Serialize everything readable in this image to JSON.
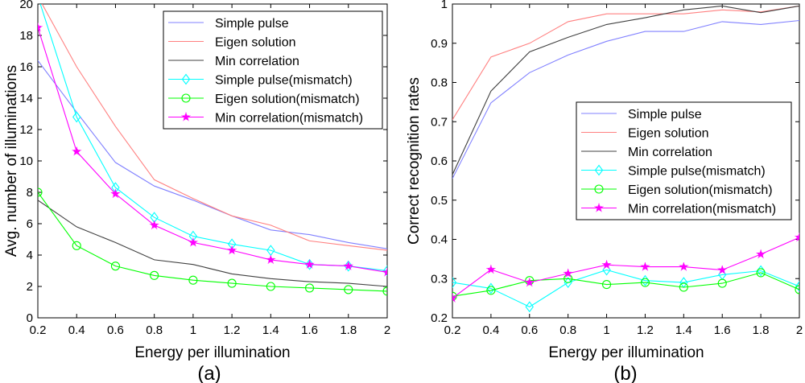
{
  "colors": {
    "simple_pulse": "#8080ff",
    "eigen_solution": "#ff8080",
    "min_correlation": "#404040",
    "simple_pulse_mismatch": "#00ffff",
    "eigen_solution_mismatch": "#00ff00",
    "min_correlation_mismatch": "#ff00ff"
  },
  "chart_data": [
    {
      "type": "line",
      "caption": "(a)",
      "xlabel": "Energy per illumination",
      "ylabel": "Avg. number of illuminations",
      "xlim": [
        0.2,
        2
      ],
      "ylim": [
        0,
        20
      ],
      "xticks": [
        0.2,
        0.4,
        0.6,
        0.8,
        1,
        1.2,
        1.4,
        1.6,
        1.8,
        2
      ],
      "xtick_labels": [
        "0.2",
        "0.4",
        "0.6",
        "0.8",
        "1",
        "1.2",
        "1.4",
        "1.6",
        "1.8",
        "2"
      ],
      "yticks": [
        0,
        2,
        4,
        6,
        8,
        10,
        12,
        14,
        16,
        18,
        20
      ],
      "ytick_labels": [
        "0",
        "2",
        "4",
        "6",
        "8",
        "10",
        "12",
        "14",
        "16",
        "18",
        "20"
      ],
      "grid": false,
      "legend_position": "top-right",
      "x": [
        0.2,
        0.4,
        0.6,
        0.8,
        1,
        1.2,
        1.4,
        1.6,
        1.8,
        2
      ],
      "series": [
        {
          "name": "Simple pulse",
          "color": "simple_pulse",
          "marker": "none",
          "values": [
            16.4,
            13.1,
            9.9,
            8.4,
            7.5,
            6.5,
            5.6,
            5.3,
            4.8,
            4.4
          ]
        },
        {
          "name": "Eigen solution",
          "color": "eigen_solution",
          "marker": "none",
          "values": [
            20.5,
            16.0,
            12.2,
            8.8,
            7.6,
            6.5,
            5.9,
            4.9,
            4.6,
            4.3
          ]
        },
        {
          "name": "Min correlation",
          "color": "min_correlation",
          "marker": "none",
          "values": [
            7.5,
            5.8,
            4.8,
            3.7,
            3.4,
            2.8,
            2.5,
            2.3,
            2.2,
            2.0
          ]
        },
        {
          "name": "Simple pulse(mismatch)",
          "color": "simple_pulse_mismatch",
          "marker": "diamond",
          "values": [
            20.5,
            12.8,
            8.3,
            6.4,
            5.2,
            4.7,
            4.3,
            3.4,
            3.3,
            3.0
          ]
        },
        {
          "name": "Eigen solution(mismatch)",
          "color": "eigen_solution_mismatch",
          "marker": "circle",
          "values": [
            8.0,
            4.6,
            3.3,
            2.7,
            2.4,
            2.2,
            2.0,
            1.9,
            1.8,
            1.7
          ]
        },
        {
          "name": "Min correlation(mismatch)",
          "color": "min_correlation_mismatch",
          "marker": "star",
          "values": [
            18.5,
            10.6,
            7.9,
            5.9,
            4.8,
            4.3,
            3.7,
            3.4,
            3.3,
            2.9
          ]
        }
      ]
    },
    {
      "type": "line",
      "caption": "(b)",
      "xlabel": "Energy per illumination",
      "ylabel": "Correct recognition rates",
      "xlim": [
        0.2,
        2
      ],
      "ylim": [
        0.2,
        1
      ],
      "xticks": [
        0.2,
        0.4,
        0.6,
        0.8,
        1,
        1.2,
        1.4,
        1.6,
        1.8,
        2
      ],
      "xtick_labels": [
        "0.2",
        "0.4",
        "0.6",
        "0.8",
        "1",
        "1.2",
        "1.4",
        "1.6",
        "1.8",
        "2"
      ],
      "yticks": [
        0.2,
        0.3,
        0.4,
        0.5,
        0.6,
        0.7,
        0.8,
        0.9,
        1
      ],
      "ytick_labels": [
        "0.2",
        "0.3",
        "0.4",
        "0.5",
        "0.6",
        "0.7",
        "0.8",
        "0.9",
        "1"
      ],
      "grid": false,
      "legend_position": "center-right",
      "x": [
        0.2,
        0.4,
        0.6,
        0.8,
        1,
        1.2,
        1.4,
        1.6,
        1.8,
        2
      ],
      "series": [
        {
          "name": "Simple pulse",
          "color": "simple_pulse",
          "marker": "none",
          "values": [
            0.555,
            0.748,
            0.825,
            0.87,
            0.905,
            0.93,
            0.93,
            0.955,
            0.948,
            0.958
          ]
        },
        {
          "name": "Eigen solution",
          "color": "eigen_solution",
          "marker": "none",
          "values": [
            0.705,
            0.865,
            0.9,
            0.955,
            0.975,
            0.975,
            0.975,
            0.985,
            0.98,
            0.995
          ]
        },
        {
          "name": "Min correlation",
          "color": "min_correlation",
          "marker": "none",
          "values": [
            0.565,
            0.778,
            0.878,
            0.915,
            0.948,
            0.965,
            0.985,
            0.995,
            0.978,
            0.995
          ]
        },
        {
          "name": "Simple pulse(mismatch)",
          "color": "simple_pulse_mismatch",
          "marker": "diamond",
          "values": [
            0.29,
            0.275,
            0.228,
            0.29,
            0.322,
            0.295,
            0.29,
            0.31,
            0.32,
            0.28
          ]
        },
        {
          "name": "Eigen solution(mismatch)",
          "color": "eigen_solution_mismatch",
          "marker": "circle",
          "values": [
            0.255,
            0.27,
            0.295,
            0.3,
            0.285,
            0.29,
            0.278,
            0.288,
            0.315,
            0.272
          ]
        },
        {
          "name": "Min correlation(mismatch)",
          "color": "min_correlation_mismatch",
          "marker": "star",
          "values": [
            0.25,
            0.323,
            0.29,
            0.313,
            0.335,
            0.33,
            0.33,
            0.322,
            0.362,
            0.405
          ]
        }
      ]
    }
  ]
}
